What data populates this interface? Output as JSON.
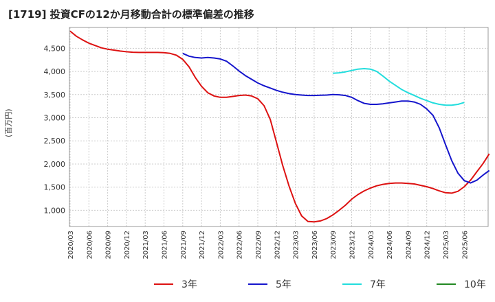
{
  "chart_data": {
    "type": "line",
    "title": "[1719]  投資CFの12か月移動合計の標準偏差の推移",
    "ylabel": "(百万円)",
    "xlabel": "",
    "ylim": [
      650,
      4950
    ],
    "yticks": [
      1000,
      1500,
      2000,
      2500,
      3000,
      3500,
      4000,
      4500
    ],
    "ytick_labels": [
      "1,000",
      "1,500",
      "2,000",
      "2,500",
      "3,000",
      "3,500",
      "4,000",
      "4,500"
    ],
    "x_labels": [
      "2020/03",
      "2020/06",
      "2020/09",
      "2020/12",
      "2021/03",
      "2021/06",
      "2021/09",
      "2021/12",
      "2022/03",
      "2022/06",
      "2022/09",
      "2022/12",
      "2023/03",
      "2023/06",
      "2023/09",
      "2023/12",
      "2024/03",
      "2024/06",
      "2024/09",
      "2024/12",
      "2025/03",
      "2025/06"
    ],
    "grid": true,
    "legend_position": "bottom",
    "series": [
      {
        "name": "3年",
        "color": "#dd1111",
        "start_index": 0,
        "values": [
          4870,
          4760,
          4680,
          4610,
          4560,
          4510,
          4480,
          4460,
          4440,
          4425,
          4415,
          4410,
          4410,
          4410,
          4410,
          4405,
          4390,
          4350,
          4260,
          4100,
          3870,
          3680,
          3540,
          3470,
          3440,
          3440,
          3460,
          3480,
          3490,
          3470,
          3410,
          3260,
          2960,
          2460,
          1960,
          1520,
          1150,
          880,
          760,
          750,
          770,
          820,
          900,
          1000,
          1110,
          1240,
          1340,
          1420,
          1480,
          1530,
          1560,
          1580,
          1590,
          1590,
          1580,
          1570,
          1540,
          1510,
          1470,
          1420,
          1380,
          1370,
          1410,
          1510,
          1650,
          1830,
          2010,
          2220
        ]
      },
      {
        "name": "5年",
        "color": "#1515cc",
        "start_index": 18,
        "values": [
          4390,
          4330,
          4300,
          4290,
          4300,
          4290,
          4270,
          4220,
          4120,
          4010,
          3910,
          3830,
          3750,
          3690,
          3640,
          3590,
          3550,
          3520,
          3500,
          3490,
          3480,
          3480,
          3485,
          3490,
          3500,
          3495,
          3480,
          3440,
          3370,
          3310,
          3290,
          3290,
          3300,
          3320,
          3340,
          3360,
          3360,
          3340,
          3290,
          3190,
          3050,
          2780,
          2420,
          2070,
          1800,
          1640,
          1590,
          1650,
          1760,
          1860
        ]
      },
      {
        "name": "7年",
        "color": "#22dddd",
        "start_index": 42,
        "values": [
          3960,
          3970,
          3990,
          4020,
          4050,
          4060,
          4050,
          4000,
          3900,
          3790,
          3700,
          3610,
          3540,
          3480,
          3420,
          3370,
          3320,
          3290,
          3270,
          3270,
          3290,
          3330
        ]
      },
      {
        "name": "10年",
        "color": "#228822",
        "start_index": 0,
        "values": []
      }
    ]
  }
}
